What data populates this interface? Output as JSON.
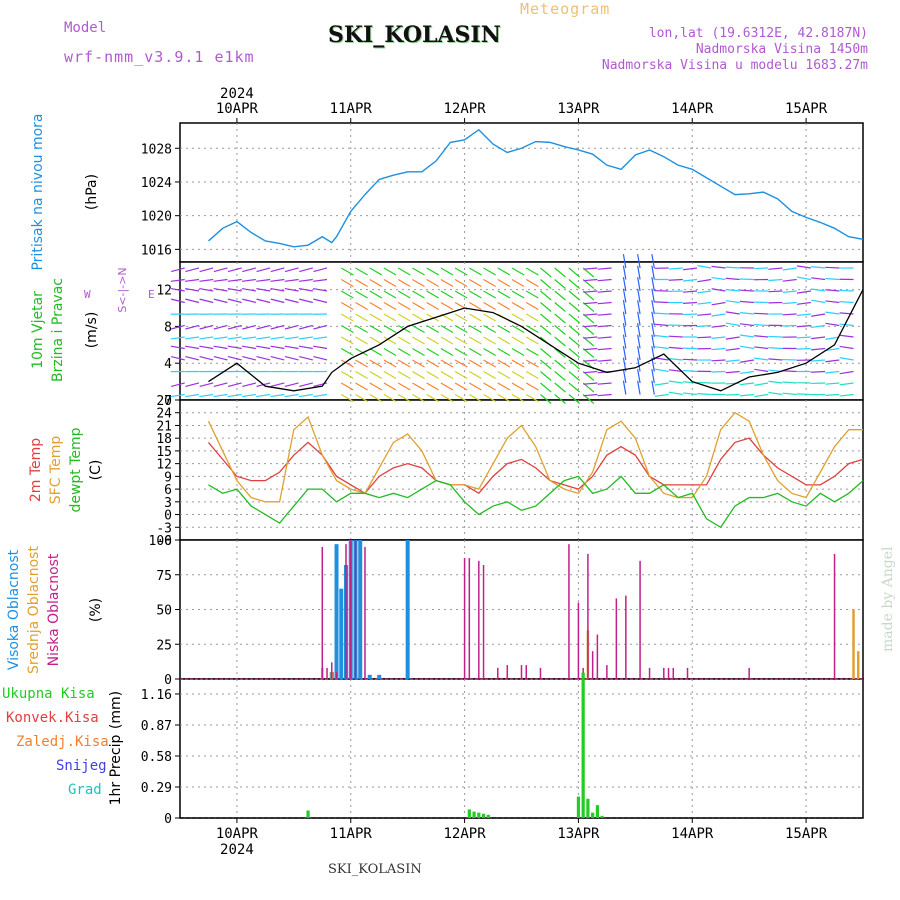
{
  "header": {
    "model_label": "Model",
    "model_value": "wrf-nmm_v3.9.1 e1km",
    "station": "SKI_KOLASIN",
    "meteogram": "Meteogram",
    "lonlat": "lon,lat (19.6312E, 42.8187N)",
    "elevation": "Nadmorska Visina 1450m",
    "elevation_model": "Nadmorska Visina u modelu 1683.27m"
  },
  "footer": {
    "station": "SKI_KOLASIN",
    "credit": "made by Angel"
  },
  "colors": {
    "pressure": "#1e90e0",
    "temp2m": "#e04040",
    "sfc": "#e0a030",
    "dewpt": "#22bb22",
    "high": "#1e90e0",
    "mid": "#e0a030",
    "low": "#c0208a",
    "precip": "#22cc22",
    "convek": "#e04040",
    "zaledj": "#f08030",
    "snijeg": "#4040e0",
    "grad": "#20c0c0"
  },
  "x_axis": {
    "year": "2024",
    "days": [
      "10APR",
      "11APR",
      "12APR",
      "13APR",
      "14APR",
      "15APR"
    ],
    "day_start_hour": [
      6,
      30,
      54,
      78,
      102,
      126
    ],
    "range_hours": [
      -6,
      138
    ]
  },
  "panels": {
    "pressure": {
      "title": "Pritisak na nivou mora",
      "unit": "(hPa)"
    },
    "wind": {
      "title": [
        "10m Vjetar",
        "Brzina i Pravac"
      ],
      "unit": "(m/s)",
      "compass_vertical": "S<-|->N",
      "compass_w": "W",
      "compass_e": "E"
    },
    "temp": {
      "titles": [
        "2m Temp",
        "SFC Temp",
        "dewpt Temp"
      ],
      "unit": "(C)"
    },
    "cloud": {
      "titles": [
        "Visoka Oblacnost",
        "Srednja Oblacnost",
        "Niska Oblacnost"
      ],
      "unit": "(%)"
    },
    "precip": {
      "titles": [
        "Ukupna Kisa",
        "Konvek.Kisa",
        "Zaledj.Kisa",
        "Snijeg",
        "Grad"
      ],
      "unit": [
        "1hr Precip",
        "(mm)"
      ]
    }
  },
  "chart_data": [
    {
      "type": "line",
      "title": "Pritisak na nivou mora",
      "ylabel": "(hPa)",
      "x_unit": "hours",
      "ylim": [
        1014.5,
        1031
      ],
      "yticks": [
        1016,
        1020,
        1024,
        1028
      ],
      "series": [
        {
          "x": [
            0,
            3,
            6,
            9,
            12,
            15,
            18,
            21,
            24,
            26,
            27,
            30,
            33,
            36,
            39,
            42,
            45,
            48,
            51,
            54,
            57,
            60,
            63,
            66,
            69,
            72,
            75,
            78,
            81,
            84,
            87,
            90,
            93,
            96,
            99,
            102,
            105,
            108,
            111,
            114,
            117,
            120,
            123,
            126,
            129,
            132,
            135,
            138
          ],
          "values": [
            1017.0,
            1018.5,
            1019.3,
            1018.0,
            1017.0,
            1016.7,
            1016.3,
            1016.5,
            1017.5,
            1016.8,
            1017.5,
            1020.5,
            1022.5,
            1024.3,
            1024.8,
            1025.2,
            1025.2,
            1026.5,
            1028.7,
            1029.0,
            1030.2,
            1028.5,
            1027.5,
            1028.0,
            1028.8,
            1028.7,
            1028.2,
            1027.8,
            1027.3,
            1026.0,
            1025.5,
            1027.2,
            1027.8,
            1027.0,
            1026.0,
            1025.5,
            1024.5,
            1023.5,
            1022.5,
            1022.6,
            1022.8,
            1022.0,
            1020.5,
            1019.8,
            1019.2,
            1018.5,
            1017.5,
            1017.2
          ]
        }
      ]
    },
    {
      "type": "line",
      "title": "10m Vjetar Brzina i Pravac",
      "ylabel": "(m/s)",
      "x_unit": "hours",
      "ylim": [
        0,
        15
      ],
      "yticks": [
        0,
        4,
        8,
        12
      ],
      "series": [
        {
          "x": [
            0,
            6,
            12,
            18,
            24,
            26,
            30,
            36,
            42,
            48,
            54,
            60,
            66,
            72,
            78,
            84,
            90,
            96,
            102,
            108,
            114,
            120,
            126,
            132,
            138
          ],
          "values": [
            2.0,
            4.0,
            1.5,
            1.0,
            1.5,
            3.0,
            4.5,
            6.0,
            8.0,
            9.0,
            10.0,
            9.5,
            8.0,
            6.0,
            4.0,
            3.0,
            3.5,
            5.0,
            2.0,
            1.0,
            2.5,
            3.0,
            4.0,
            6.0,
            12.0
          ]
        }
      ]
    },
    {
      "type": "line",
      "title": "2m Temp / SFC Temp / dewpt Temp",
      "ylabel": "(C)",
      "x_unit": "hours",
      "ylim": [
        -6,
        27
      ],
      "yticks": [
        -6,
        -3,
        0,
        3,
        6,
        9,
        12,
        15,
        18,
        21,
        24,
        27
      ],
      "series": [
        {
          "name": "2m Temp",
          "x": [
            0,
            3,
            6,
            9,
            12,
            15,
            18,
            21,
            24,
            27,
            30,
            33,
            36,
            39,
            42,
            45,
            48,
            51,
            54,
            57,
            60,
            63,
            66,
            69,
            72,
            75,
            78,
            81,
            84,
            87,
            90,
            93,
            96,
            99,
            102,
            105,
            108,
            111,
            114,
            117,
            120,
            123,
            126,
            129,
            132,
            135,
            138
          ],
          "values": [
            17,
            13,
            9,
            8,
            8,
            10,
            14,
            17,
            14,
            9,
            7,
            5,
            9,
            11,
            12,
            11,
            8,
            7,
            7,
            5,
            9,
            12,
            13,
            11,
            8,
            7,
            6,
            9,
            14,
            16,
            14,
            9,
            7,
            7,
            7,
            7,
            13,
            17,
            18,
            14,
            11,
            9,
            7,
            7,
            9,
            12,
            13
          ]
        },
        {
          "name": "SFC Temp",
          "x": [
            0,
            3,
            6,
            9,
            12,
            15,
            18,
            21,
            24,
            27,
            30,
            33,
            36,
            39,
            42,
            45,
            48,
            51,
            54,
            57,
            60,
            63,
            66,
            69,
            72,
            75,
            78,
            81,
            84,
            87,
            90,
            93,
            96,
            99,
            102,
            105,
            108,
            111,
            114,
            117,
            120,
            123,
            126,
            129,
            132,
            135,
            138
          ],
          "values": [
            22,
            15,
            8,
            4,
            3,
            3,
            20,
            23,
            14,
            8,
            6,
            5,
            11,
            17,
            19,
            15,
            8,
            7,
            7,
            6,
            12,
            18,
            21,
            16,
            8,
            6,
            5,
            10,
            20,
            22,
            18,
            9,
            5,
            4,
            4,
            9,
            20,
            24,
            22,
            14,
            8,
            5,
            4,
            10,
            16,
            20,
            20
          ]
        },
        {
          "name": "dewpt Temp",
          "x": [
            0,
            3,
            6,
            9,
            12,
            15,
            18,
            21,
            24,
            27,
            30,
            33,
            36,
            39,
            42,
            45,
            48,
            51,
            54,
            57,
            60,
            63,
            66,
            69,
            72,
            75,
            78,
            81,
            84,
            87,
            90,
            93,
            96,
            99,
            102,
            105,
            108,
            111,
            114,
            117,
            120,
            123,
            126,
            129,
            132,
            135,
            138
          ],
          "values": [
            7,
            5,
            6,
            2,
            0,
            -2,
            2,
            6,
            6,
            3,
            5,
            5,
            4,
            5,
            4,
            6,
            8,
            7,
            3,
            0,
            2,
            3,
            1,
            2,
            5,
            8,
            9,
            5,
            6,
            9,
            5,
            5,
            7,
            4,
            5,
            -1,
            -3,
            2,
            4,
            4,
            5,
            3,
            2,
            5,
            3,
            5,
            8
          ]
        }
      ]
    },
    {
      "type": "bar",
      "title": "Oblacnost",
      "ylabel": "(%)",
      "x_unit": "hours",
      "ylim": [
        0,
        100
      ],
      "yticks": [
        0,
        25,
        50,
        75,
        100
      ],
      "series": [
        {
          "name": "Visoka Oblacnost",
          "x": [
            26,
            27,
            28,
            29,
            30,
            31,
            32,
            34,
            36,
            42
          ],
          "values": [
            5,
            97,
            65,
            82,
            100,
            100,
            100,
            3,
            3,
            100
          ]
        },
        {
          "name": "Srednja Oblacnost",
          "x": [
            24,
            26,
            80,
            136,
            137
          ],
          "values": [
            8,
            5,
            35,
            50,
            20
          ]
        },
        {
          "name": "Niska Oblacnost",
          "x": [
            24,
            25,
            26,
            27,
            29,
            30,
            31,
            33,
            54,
            55,
            57,
            58,
            61,
            63,
            66,
            67,
            70,
            76,
            78,
            79,
            80,
            81,
            82,
            84,
            86,
            88,
            91,
            93,
            96,
            97,
            98,
            101,
            114,
            132
          ],
          "values": [
            95,
            8,
            12,
            5,
            97,
            100,
            100,
            95,
            87,
            87,
            85,
            82,
            8,
            10,
            10,
            10,
            8,
            97,
            55,
            8,
            90,
            20,
            32,
            10,
            58,
            60,
            85,
            8,
            8,
            8,
            8,
            8,
            8,
            90
          ]
        }
      ]
    },
    {
      "type": "bar",
      "title": "1hr Precip",
      "ylabel": "1hr Precip (mm)",
      "x_unit": "hours",
      "ylim": [
        0,
        1.3
      ],
      "yticks": [
        0,
        0.29,
        0.58,
        0.87,
        1.16
      ],
      "series": [
        {
          "name": "Ukupna Kisa",
          "x": [
            21,
            55,
            56,
            57,
            58,
            59,
            78,
            79,
            80,
            81,
            82,
            83
          ],
          "values": [
            0.07,
            0.08,
            0.06,
            0.05,
            0.04,
            0.03,
            0.2,
            1.36,
            0.18,
            0.05,
            0.12,
            0.02
          ]
        }
      ]
    }
  ]
}
